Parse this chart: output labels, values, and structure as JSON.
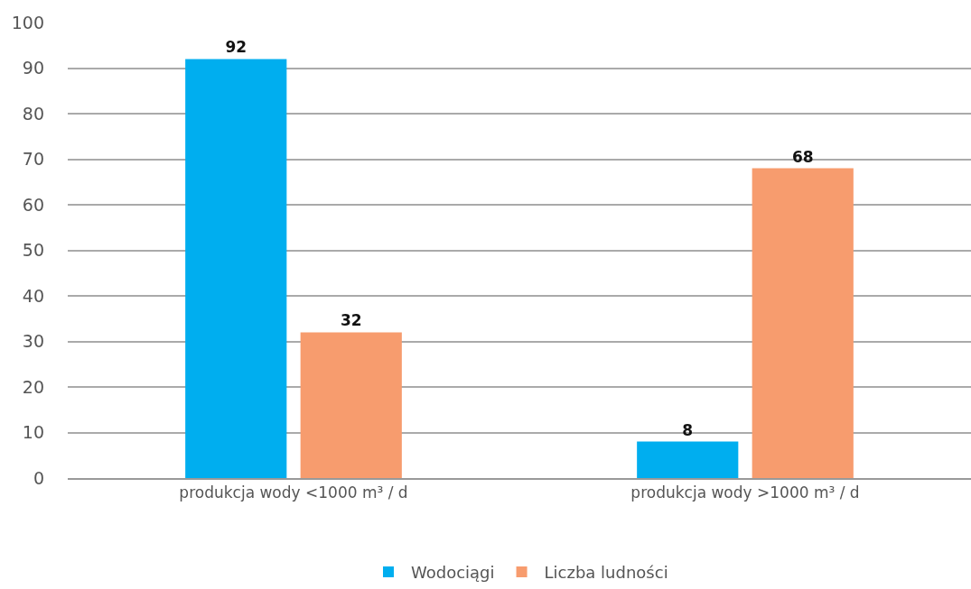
{
  "chart_data": {
    "type": "bar",
    "categories": [
      "produkcja wody <1000 m³ / d",
      "produkcja wody >1000 m³ / d"
    ],
    "series": [
      {
        "name": "Wodociągi",
        "color": "#00aeef",
        "values": [
          92,
          8
        ]
      },
      {
        "name": "Liczba ludności",
        "color": "#f79c6e",
        "values": [
          32,
          68
        ]
      }
    ],
    "ylim": [
      0,
      100
    ],
    "yticks": [
      0,
      10,
      20,
      30,
      40,
      50,
      60,
      70,
      80,
      90,
      100
    ],
    "grid": "y",
    "legend": "bottom",
    "data_labels": true
  }
}
